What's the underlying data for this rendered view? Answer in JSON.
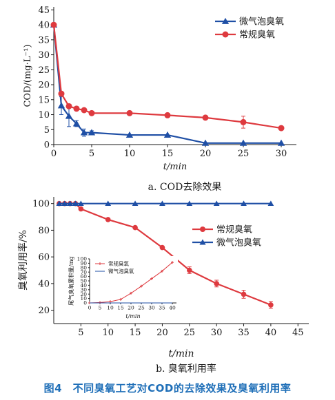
{
  "colors": {
    "micro": "#1f4fa5",
    "conventional": "#de3a3f",
    "caption": "#1f6fb8",
    "axis": "#1a1a1a"
  },
  "figure_caption": "图4　不同臭氧工艺对COD的去除效果及臭氧利用率",
  "chart_data": [
    {
      "id": "a",
      "type": "line",
      "subtitle": "a. COD去除效果",
      "xlabel": "t/min",
      "ylabel": "COD/(mg·L⁻¹)",
      "xlim": [
        0,
        32
      ],
      "ylim": [
        0,
        46
      ],
      "x_ticks": [
        0,
        5,
        10,
        15,
        20,
        25,
        30
      ],
      "y_ticks": [
        0,
        5,
        10,
        15,
        20,
        25,
        30,
        35,
        40,
        45
      ],
      "grid": false,
      "legend_position": "top-right",
      "series": [
        {
          "name": "微气泡臭氧",
          "marker": "triangle",
          "color_key": "micro",
          "x": [
            0,
            1,
            2,
            3,
            4,
            5,
            10,
            15,
            20,
            25,
            30
          ],
          "y": [
            40,
            13,
            9.5,
            7,
            4,
            4,
            3.2,
            3.2,
            0.5,
            0.5,
            0.5
          ],
          "err": [
            0,
            3,
            3.5,
            1,
            1.2,
            0.6,
            0,
            0,
            0,
            0,
            0
          ]
        },
        {
          "name": "常规臭氧",
          "marker": "circle",
          "color_key": "conventional",
          "x": [
            0,
            1,
            2,
            3,
            4,
            5,
            10,
            15,
            20,
            25,
            30
          ],
          "y": [
            40,
            17,
            12.8,
            12,
            11.5,
            10.5,
            10.5,
            9.8,
            9,
            7.5,
            5.5
          ],
          "err": [
            0,
            0,
            0,
            0,
            0,
            0,
            0,
            0,
            0,
            2,
            0
          ]
        }
      ]
    },
    {
      "id": "b",
      "type": "line",
      "subtitle": "b. 臭氧利用率",
      "xlabel": "t/min",
      "ylabel": "臭氧利用率/%",
      "xlim": [
        0,
        47
      ],
      "ylim": [
        10,
        105
      ],
      "x_ticks": [
        5,
        10,
        15,
        20,
        25,
        30,
        35,
        40,
        45
      ],
      "y_ticks": [
        20,
        40,
        60,
        80,
        100
      ],
      "grid": false,
      "legend_position": "center-right",
      "series": [
        {
          "name": "常规臭氧",
          "marker": "circle",
          "color_key": "conventional",
          "x": [
            1,
            2,
            3,
            4,
            5,
            10,
            15,
            20,
            25,
            30,
            35,
            40
          ],
          "y": [
            100,
            100,
            100,
            100,
            96,
            88,
            82,
            67,
            50,
            40,
            32,
            24
          ],
          "err": [
            0,
            0,
            0,
            0,
            0,
            0,
            0,
            0,
            2.5,
            2.5,
            3,
            2.5
          ]
        },
        {
          "name": "微气泡臭氧",
          "marker": "triangle",
          "color_key": "micro",
          "x": [
            1,
            2,
            3,
            4,
            5,
            10,
            15,
            20,
            25,
            30,
            35,
            40
          ],
          "y": [
            100,
            100,
            100,
            100,
            100,
            100,
            100,
            100,
            100,
            100,
            100,
            100
          ],
          "err": [
            0,
            0,
            0,
            0,
            0,
            0,
            0,
            0,
            0,
            0,
            0,
            0
          ]
        }
      ]
    },
    {
      "id": "b-inset",
      "type": "line",
      "xlabel": "t/min",
      "ylabel": "尾气臭氧累积量/mg",
      "xlim": [
        0,
        42
      ],
      "ylim": [
        0,
        100
      ],
      "x_ticks": [
        0,
        5,
        10,
        15,
        20,
        25,
        30,
        35,
        40
      ],
      "y_ticks": [
        0,
        10,
        20,
        30,
        40,
        50,
        60,
        70,
        80,
        90,
        100
      ],
      "grid": false,
      "legend_position": "top-left",
      "series": [
        {
          "name": "常规臭氧",
          "marker": "plus",
          "color_key": "conventional",
          "x": [
            0,
            5,
            10,
            15,
            20,
            25,
            30,
            35,
            40
          ],
          "y": [
            0,
            1,
            3,
            8,
            22,
            38,
            55,
            72,
            92
          ]
        },
        {
          "name": "微气泡臭氧",
          "marker": "none",
          "color_key": "micro",
          "x": [
            0,
            5,
            10,
            15,
            20,
            25,
            30,
            35,
            40
          ],
          "y": [
            0,
            0,
            0,
            0,
            0,
            0,
            0,
            0,
            0
          ]
        }
      ]
    }
  ]
}
